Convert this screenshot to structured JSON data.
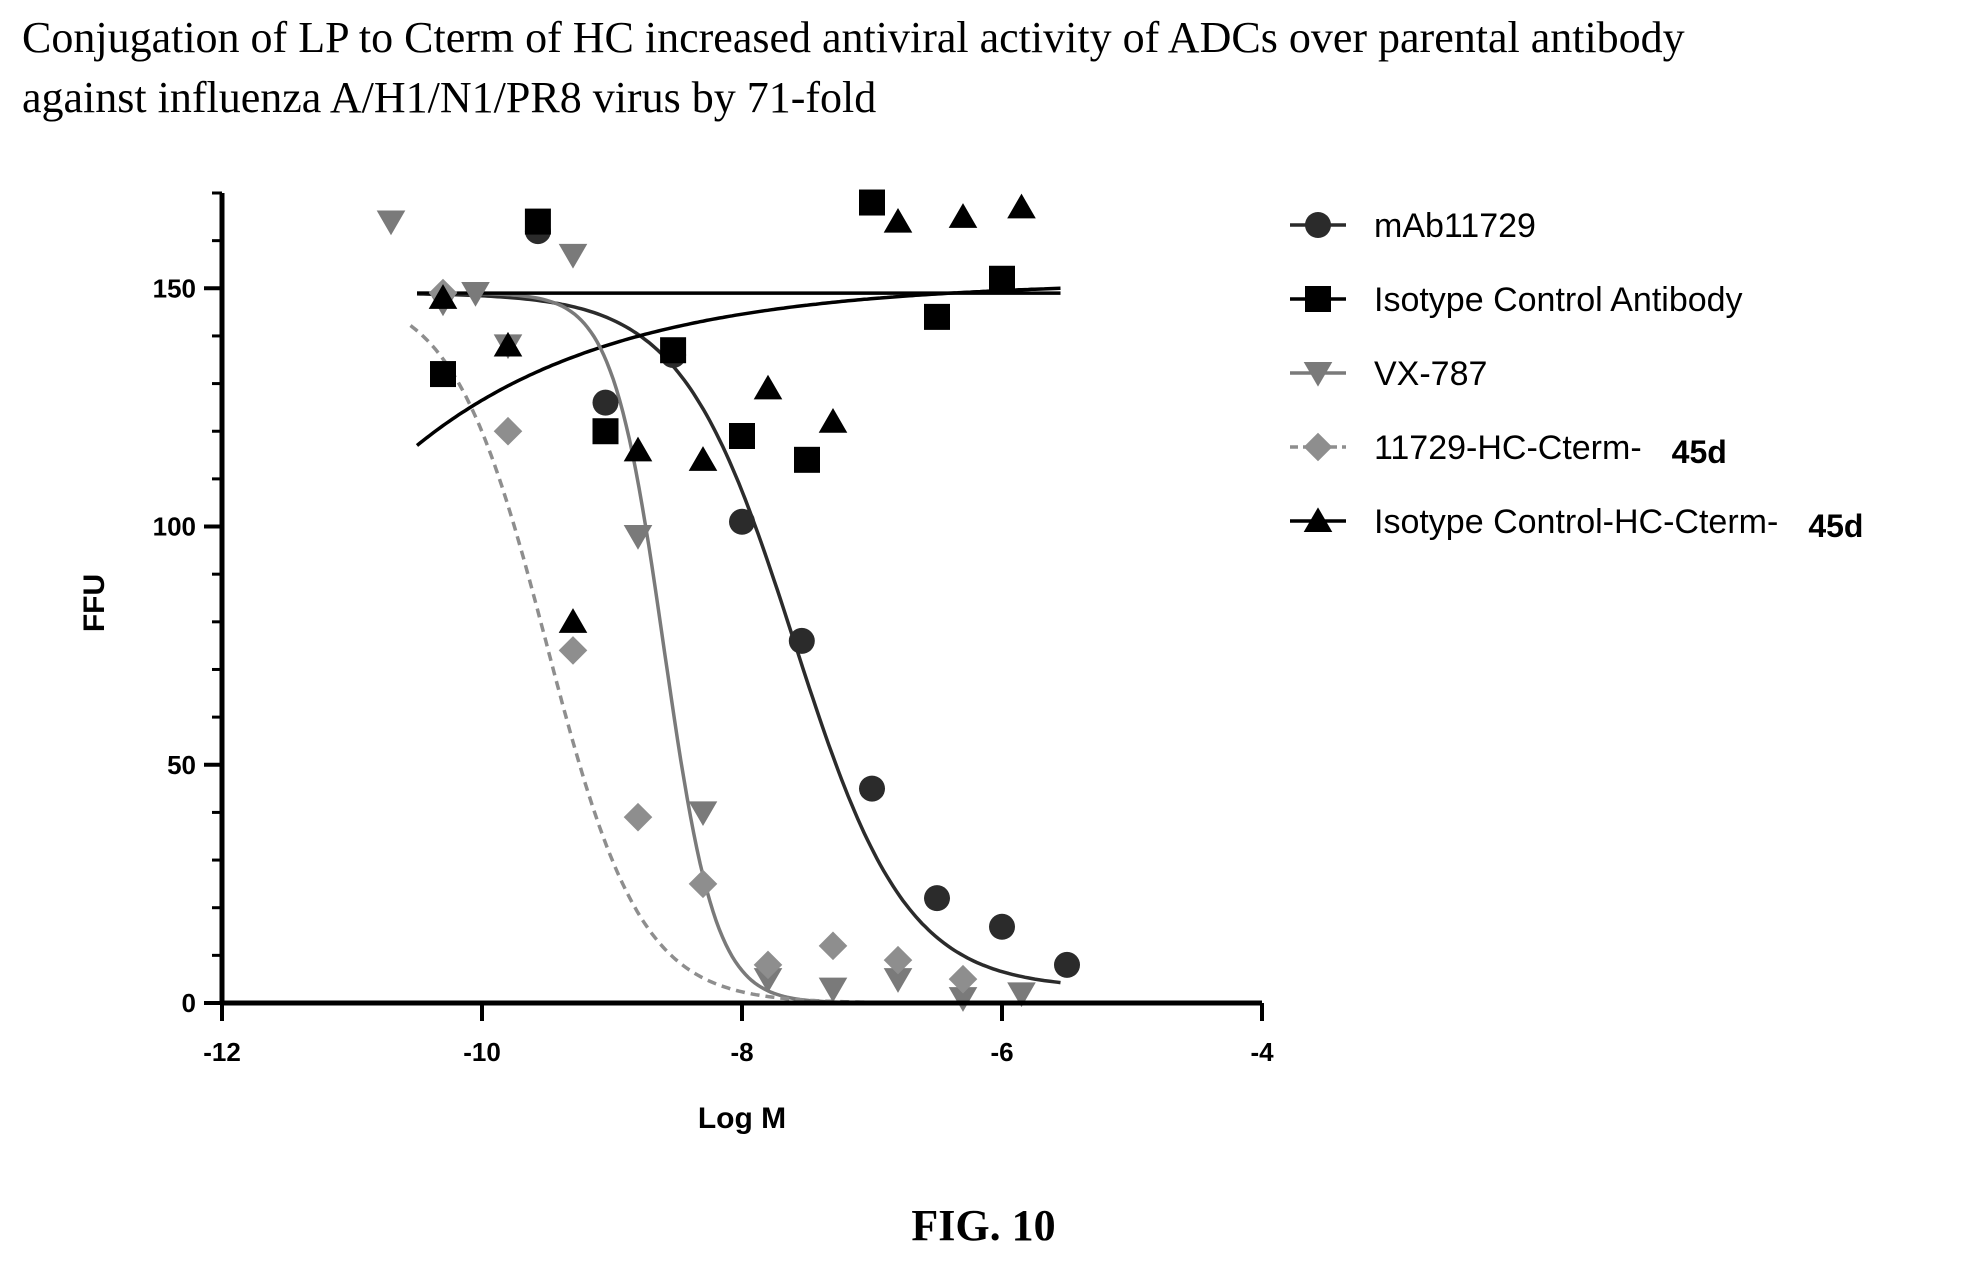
{
  "title_lines": [
    "Conjugation of LP to Cterm of HC increased antiviral activity of ADCs over parental antibody",
    "against influenza A/H1/N1/PR8 virus by 71-fold"
  ],
  "figure_label": "FIG. 10",
  "chart_data": {
    "type": "scatter",
    "xlabel": "Log M",
    "ylabel": "FFU",
    "xlim": [
      -12,
      -4
    ],
    "ylim": [
      0,
      170
    ],
    "xticks": [
      -12,
      -10,
      -8,
      -6,
      -4
    ],
    "yticks": [
      0,
      50,
      100,
      150
    ],
    "legend_position": "right",
    "series": [
      {
        "name": "mAb11729",
        "marker": "circle",
        "color": "#2b2b2b",
        "line_style": "solid",
        "x": [
          -9.57,
          -9.05,
          -8.53,
          -8.0,
          -7.54,
          -7.0,
          -6.5,
          -6.0,
          -5.5
        ],
        "y": [
          162,
          126,
          136,
          101,
          76,
          45,
          22,
          16,
          8
        ],
        "fit": {
          "top": 149,
          "bottom": 3,
          "log_ec50": -7.6,
          "hill": 1.0,
          "x_range": [
            -10.5,
            -5.55
          ]
        }
      },
      {
        "name": "Isotype Control Antibody",
        "marker": "square",
        "color": "#000000",
        "line_style": "solid",
        "x": [
          -10.3,
          -9.57,
          -9.05,
          -8.53,
          -8.0,
          -7.5,
          -7.0,
          -6.5,
          -6.0
        ],
        "y": [
          132,
          164,
          120,
          137,
          119,
          114,
          168,
          144,
          152
        ],
        "fit": {
          "type": "rising",
          "start": 117,
          "plateau": 150,
          "x_range": [
            -10.5,
            -5.55
          ]
        }
      },
      {
        "name": "VX-787",
        "marker": "triangle-down",
        "color": "#7a7a7a",
        "line_style": "solid",
        "x": [
          -10.7,
          -10.3,
          -10.05,
          -9.8,
          -9.3,
          -8.8,
          -8.3,
          -7.8,
          -7.3,
          -6.8,
          -6.3,
          -5.85
        ],
        "y": [
          164,
          147,
          149,
          138,
          157,
          98,
          40,
          5,
          3,
          5,
          1,
          2
        ],
        "fit": {
          "top": 149,
          "bottom": 0,
          "log_ec50": -8.6,
          "hill": 2.2,
          "x_range": [
            -10.5,
            -5.55
          ]
        }
      },
      {
        "name": "11729-HC-Cterm-",
        "name_suffix": "45d",
        "marker": "diamond",
        "color": "#8e8e8e",
        "line_style": "dashed",
        "x": [
          -10.3,
          -9.8,
          -9.3,
          -8.8,
          -8.3,
          -7.8,
          -7.3,
          -6.8,
          -6.3
        ],
        "y": [
          149,
          120,
          74,
          39,
          25,
          8,
          12,
          9,
          5
        ],
        "fit": {
          "top": 150,
          "bottom": 0,
          "log_ec50": -9.5,
          "hill": 1.2,
          "x_range": [
            -10.55,
            -6.3
          ]
        }
      },
      {
        "name": "Isotype Control-HC-Cterm-",
        "name_suffix": "45d",
        "marker": "triangle-up",
        "color": "#000000",
        "line_style": "solid",
        "x": [
          -10.3,
          -9.8,
          -9.3,
          -8.8,
          -8.3,
          -7.8,
          -7.3,
          -6.8,
          -6.3,
          -5.85
        ],
        "y": [
          148,
          138,
          80,
          116,
          114,
          129,
          122,
          164,
          165,
          167
        ],
        "fit": {
          "type": "flat",
          "value": 149,
          "x_range": [
            -10.5,
            -5.55
          ]
        }
      }
    ]
  }
}
